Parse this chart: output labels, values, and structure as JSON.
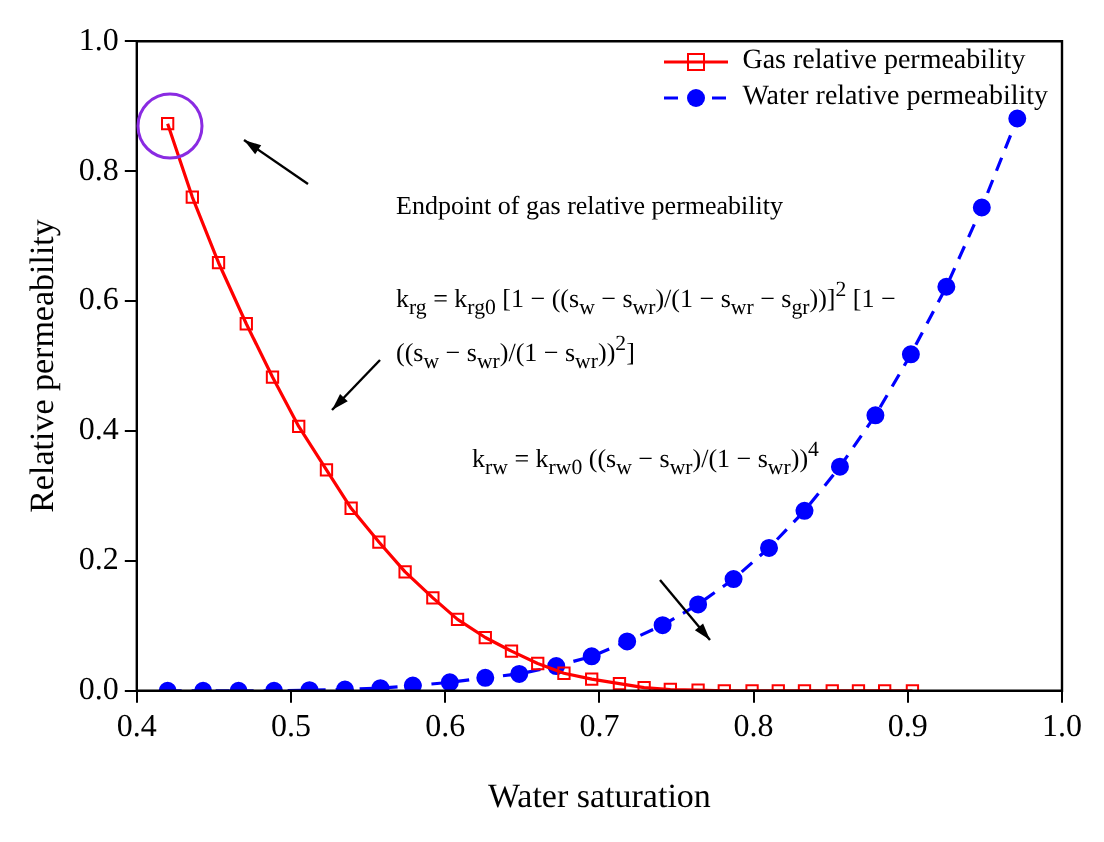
{
  "chart_data": {
    "type": "line",
    "xlabel": "Water saturation",
    "ylabel": "Relative permeability",
    "xlim": [
      0.4,
      1.0
    ],
    "ylim": [
      0.0,
      1.0
    ],
    "xticks": [
      0.4,
      0.5,
      0.6,
      0.7,
      0.8,
      0.9,
      {
        "value": 1.0,
        "label": "1.0"
      }
    ],
    "yticks": [
      {
        "value": 0,
        "label": "0.0"
      },
      0.2,
      0.4,
      0.6,
      0.8,
      {
        "value": 1.0,
        "label": "1.0"
      }
    ],
    "grid": false,
    "legend": "top right",
    "series": [
      {
        "name": "Gas relative permeability",
        "color": "#ff0000",
        "marker": "square",
        "line_style": "solid",
        "x": [
          0.42,
          0.436,
          0.453,
          0.471,
          0.488,
          0.505,
          0.523,
          0.539,
          0.557,
          0.574,
          0.592,
          0.608,
          0.626,
          0.643,
          0.66,
          0.677,
          0.695,
          0.713,
          0.729,
          0.746,
          0.764,
          0.781,
          0.799,
          0.816,
          0.833,
          0.851,
          0.868,
          0.885,
          0.903
        ],
        "values": [
          0.873,
          0.76,
          0.659,
          0.565,
          0.483,
          0.407,
          0.34,
          0.281,
          0.229,
          0.183,
          0.143,
          0.11,
          0.082,
          0.061,
          0.042,
          0.027,
          0.018,
          0.011,
          0.005,
          0.002,
          0.001,
          0.0,
          0.0,
          0.0,
          0.0,
          0.0,
          0.0,
          0.0,
          0.0
        ]
      },
      {
        "name": "Water relative permeability",
        "color": "#0000ff",
        "marker": "circle",
        "line_style": "dashed",
        "x": [
          0.42,
          0.443,
          0.466,
          0.489,
          0.512,
          0.535,
          0.558,
          0.579,
          0.603,
          0.626,
          0.648,
          0.672,
          0.695,
          0.718,
          0.741,
          0.764,
          0.787,
          0.81,
          0.833,
          0.856,
          0.879,
          0.902,
          0.925,
          0.948,
          0.971
        ],
        "values": [
          0.0,
          0.0,
          0.0,
          0.0,
          0.001,
          0.002,
          0.004,
          0.008,
          0.013,
          0.02,
          0.026,
          0.038,
          0.053,
          0.076,
          0.101,
          0.133,
          0.172,
          0.22,
          0.277,
          0.345,
          0.424,
          0.518,
          0.622,
          0.744,
          0.881
        ]
      }
    ],
    "annotations": [
      "Endpoint of gas relative permeability",
      "k$_{rg}$ = k$_{rg0}$ [1 − ((s$_{w}$ − s$_{wr}$)/(1 − s$_{wr}$ − s$_{gr}$))]$^{2}$ [1 − ((s$_{w}$ − s$_{wr}$)/(1 − s$_{wr}$))$^{2}$]",
      "k$_{rw}$ = k$_{rw0}$ ((s$_{w}$ − s$_{wr}$)/(1 − s$_{wr}$))$^{4}$"
    ]
  }
}
